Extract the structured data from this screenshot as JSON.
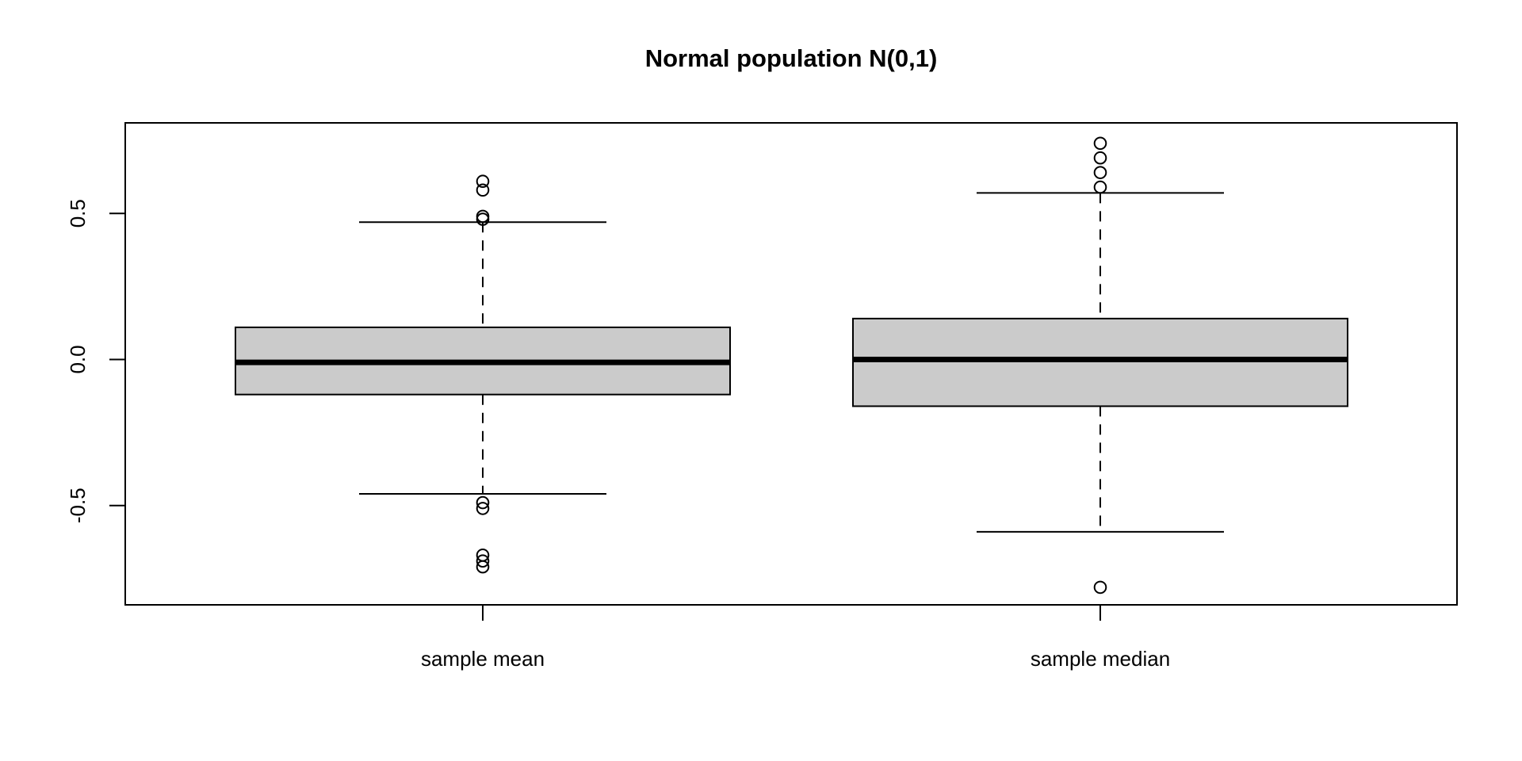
{
  "chart_data": {
    "type": "boxplot",
    "title": "Normal population N(0,1)",
    "orientation": "vertical",
    "y_axis": {
      "tick_labels": [
        "0.5",
        "0.0",
        "-0.5"
      ],
      "tick_values": [
        0.5,
        0.0,
        -0.5
      ],
      "ylim": [
        -0.84,
        0.81
      ],
      "grid": false
    },
    "categories": [
      "sample mean",
      "sample median"
    ],
    "series": [
      {
        "label": "sample mean",
        "stats": {
          "q1": -0.12,
          "median": -0.01,
          "q3": 0.11,
          "whisker_low": -0.46,
          "whisker_high": 0.47
        },
        "outliers": [
          0.61,
          0.58,
          0.49,
          0.48,
          -0.49,
          -0.51,
          -0.67,
          -0.69,
          -0.71
        ]
      },
      {
        "label": "sample median",
        "stats": {
          "q1": -0.16,
          "median": 0.0,
          "q3": 0.14,
          "whisker_low": -0.59,
          "whisker_high": 0.57
        },
        "outliers": [
          0.74,
          0.69,
          0.64,
          0.59,
          -0.78
        ]
      }
    ],
    "style": {
      "box_fill": "#cbcbcb",
      "stroke": "#000000",
      "background": "#ffffff",
      "whisker_linestyle": "dashed",
      "outlier_marker": "open-circle"
    }
  }
}
